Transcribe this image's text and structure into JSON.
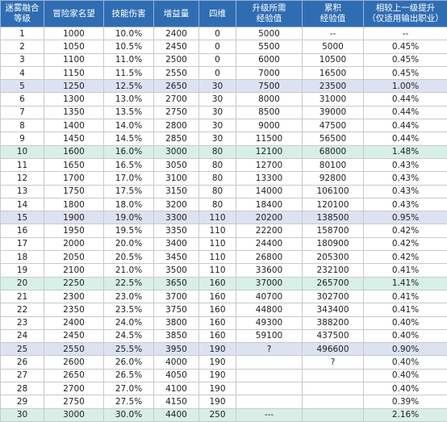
{
  "table": {
    "header": [
      [
        "迷雾融合",
        "等级"
      ],
      [
        "冒险家名望"
      ],
      [
        "技能伤害"
      ],
      [
        "增益量"
      ],
      [
        "四维"
      ],
      [
        "升级所需",
        "经验值"
      ],
      [
        "累积",
        "经验值"
      ],
      [
        "相较上一级提升",
        "（仅适用输出职业）"
      ]
    ],
    "rows": [
      [
        "1",
        "1000",
        "10.0%",
        "2400",
        "0",
        "5000",
        "--",
        "--"
      ],
      [
        "2",
        "1050",
        "10.5%",
        "2450",
        "0",
        "5500",
        "5000",
        "0.45%"
      ],
      [
        "3",
        "1100",
        "11.0%",
        "2500",
        "0",
        "6000",
        "10500",
        "0.45%"
      ],
      [
        "4",
        "1150",
        "11.5%",
        "2550",
        "0",
        "7000",
        "16500",
        "0.45%"
      ],
      [
        "5",
        "1250",
        "12.5%",
        "2650",
        "30",
        "7500",
        "23500",
        "1.00%"
      ],
      [
        "6",
        "1300",
        "13.0%",
        "2700",
        "30",
        "8000",
        "31000",
        "0.44%"
      ],
      [
        "7",
        "1350",
        "13.5%",
        "2750",
        "30",
        "8500",
        "39000",
        "0.44%"
      ],
      [
        "8",
        "1400",
        "14.0%",
        "2800",
        "30",
        "9000",
        "47500",
        "0.44%"
      ],
      [
        "9",
        "1450",
        "14.5%",
        "2850",
        "30",
        "11500",
        "56500",
        "0.44%"
      ],
      [
        "10",
        "1600",
        "16.0%",
        "3000",
        "80",
        "12100",
        "68000",
        "1.48%"
      ],
      [
        "11",
        "1650",
        "16.5%",
        "3050",
        "80",
        "12700",
        "80100",
        "0.43%"
      ],
      [
        "12",
        "1700",
        "17.0%",
        "3100",
        "80",
        "13300",
        "92800",
        "0.43%"
      ],
      [
        "13",
        "1750",
        "17.5%",
        "3150",
        "80",
        "14000",
        "106100",
        "0.43%"
      ],
      [
        "14",
        "1800",
        "18.0%",
        "3200",
        "80",
        "18400",
        "120100",
        "0.43%"
      ],
      [
        "15",
        "1900",
        "19.0%",
        "3300",
        "110",
        "20200",
        "138500",
        "0.95%"
      ],
      [
        "16",
        "1950",
        "19.5%",
        "3350",
        "110",
        "22200",
        "158700",
        "0.42%"
      ],
      [
        "17",
        "2000",
        "20.0%",
        "3400",
        "110",
        "24400",
        "180900",
        "0.42%"
      ],
      [
        "18",
        "2050",
        "20.5%",
        "3450",
        "110",
        "26800",
        "205300",
        "0.42%"
      ],
      [
        "19",
        "2100",
        "21.0%",
        "3500",
        "110",
        "33600",
        "232100",
        "0.41%"
      ],
      [
        "20",
        "2250",
        "22.5%",
        "3650",
        "160",
        "37000",
        "265700",
        "1.41%"
      ],
      [
        "21",
        "2300",
        "23.0%",
        "3700",
        "160",
        "40700",
        "302700",
        "0.41%"
      ],
      [
        "22",
        "2350",
        "23.5%",
        "3750",
        "160",
        "44800",
        "343400",
        "0.41%"
      ],
      [
        "23",
        "2400",
        "24.0%",
        "3800",
        "160",
        "49300",
        "388200",
        "0.40%"
      ],
      [
        "24",
        "2450",
        "24.5%",
        "3850",
        "160",
        "59100",
        "437500",
        "0.40%"
      ],
      [
        "25",
        "2550",
        "25.5%",
        "3950",
        "190",
        "?",
        "496600",
        "0.90%"
      ],
      [
        "26",
        "2600",
        "26.0%",
        "4000",
        "190",
        null,
        "?",
        "0.40%"
      ],
      [
        "27",
        "2650",
        "26.5%",
        "4050",
        "190",
        null,
        null,
        "0.40%"
      ],
      [
        "28",
        "2700",
        "27.0%",
        "4100",
        "190",
        null,
        null,
        "0.40%"
      ],
      [
        "29",
        "2750",
        "27.5%",
        "4150",
        "190",
        null,
        null,
        "0.39%"
      ],
      [
        "30",
        "3000",
        "30.0%",
        "4400",
        "250",
        "---",
        null,
        "2.16%"
      ]
    ]
  }
}
